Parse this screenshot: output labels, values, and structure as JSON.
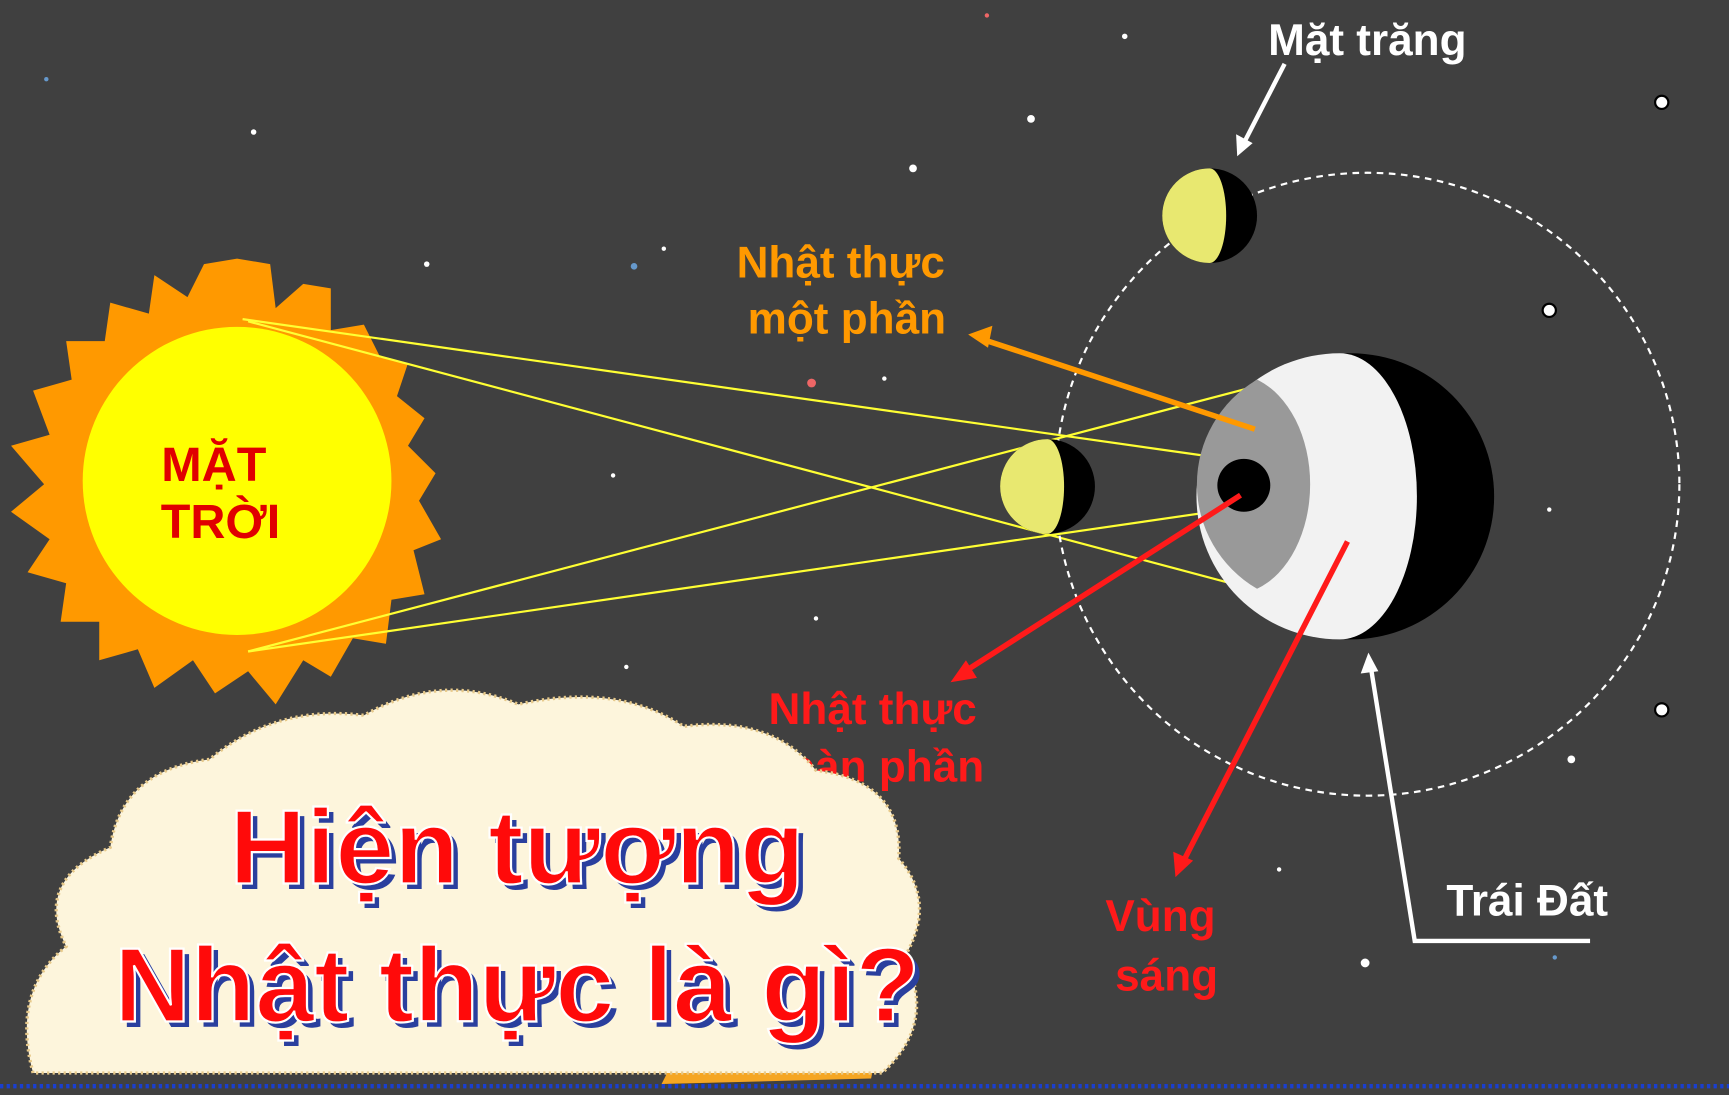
{
  "title": {
    "lines": [
      "Hiện tượng",
      "Nhật thực là gì?"
    ]
  },
  "labels": {
    "sun": [
      "MẶT",
      "TRỜI"
    ],
    "moon": "Mặt trăng",
    "partial_eclipse": [
      "Nhật thực",
      "một phần"
    ],
    "total_eclipse": [
      "Nhật thực",
      "toàn phần"
    ],
    "light_zone": [
      "Vùng",
      "sáng"
    ],
    "earth": "Trái Đất"
  }
}
